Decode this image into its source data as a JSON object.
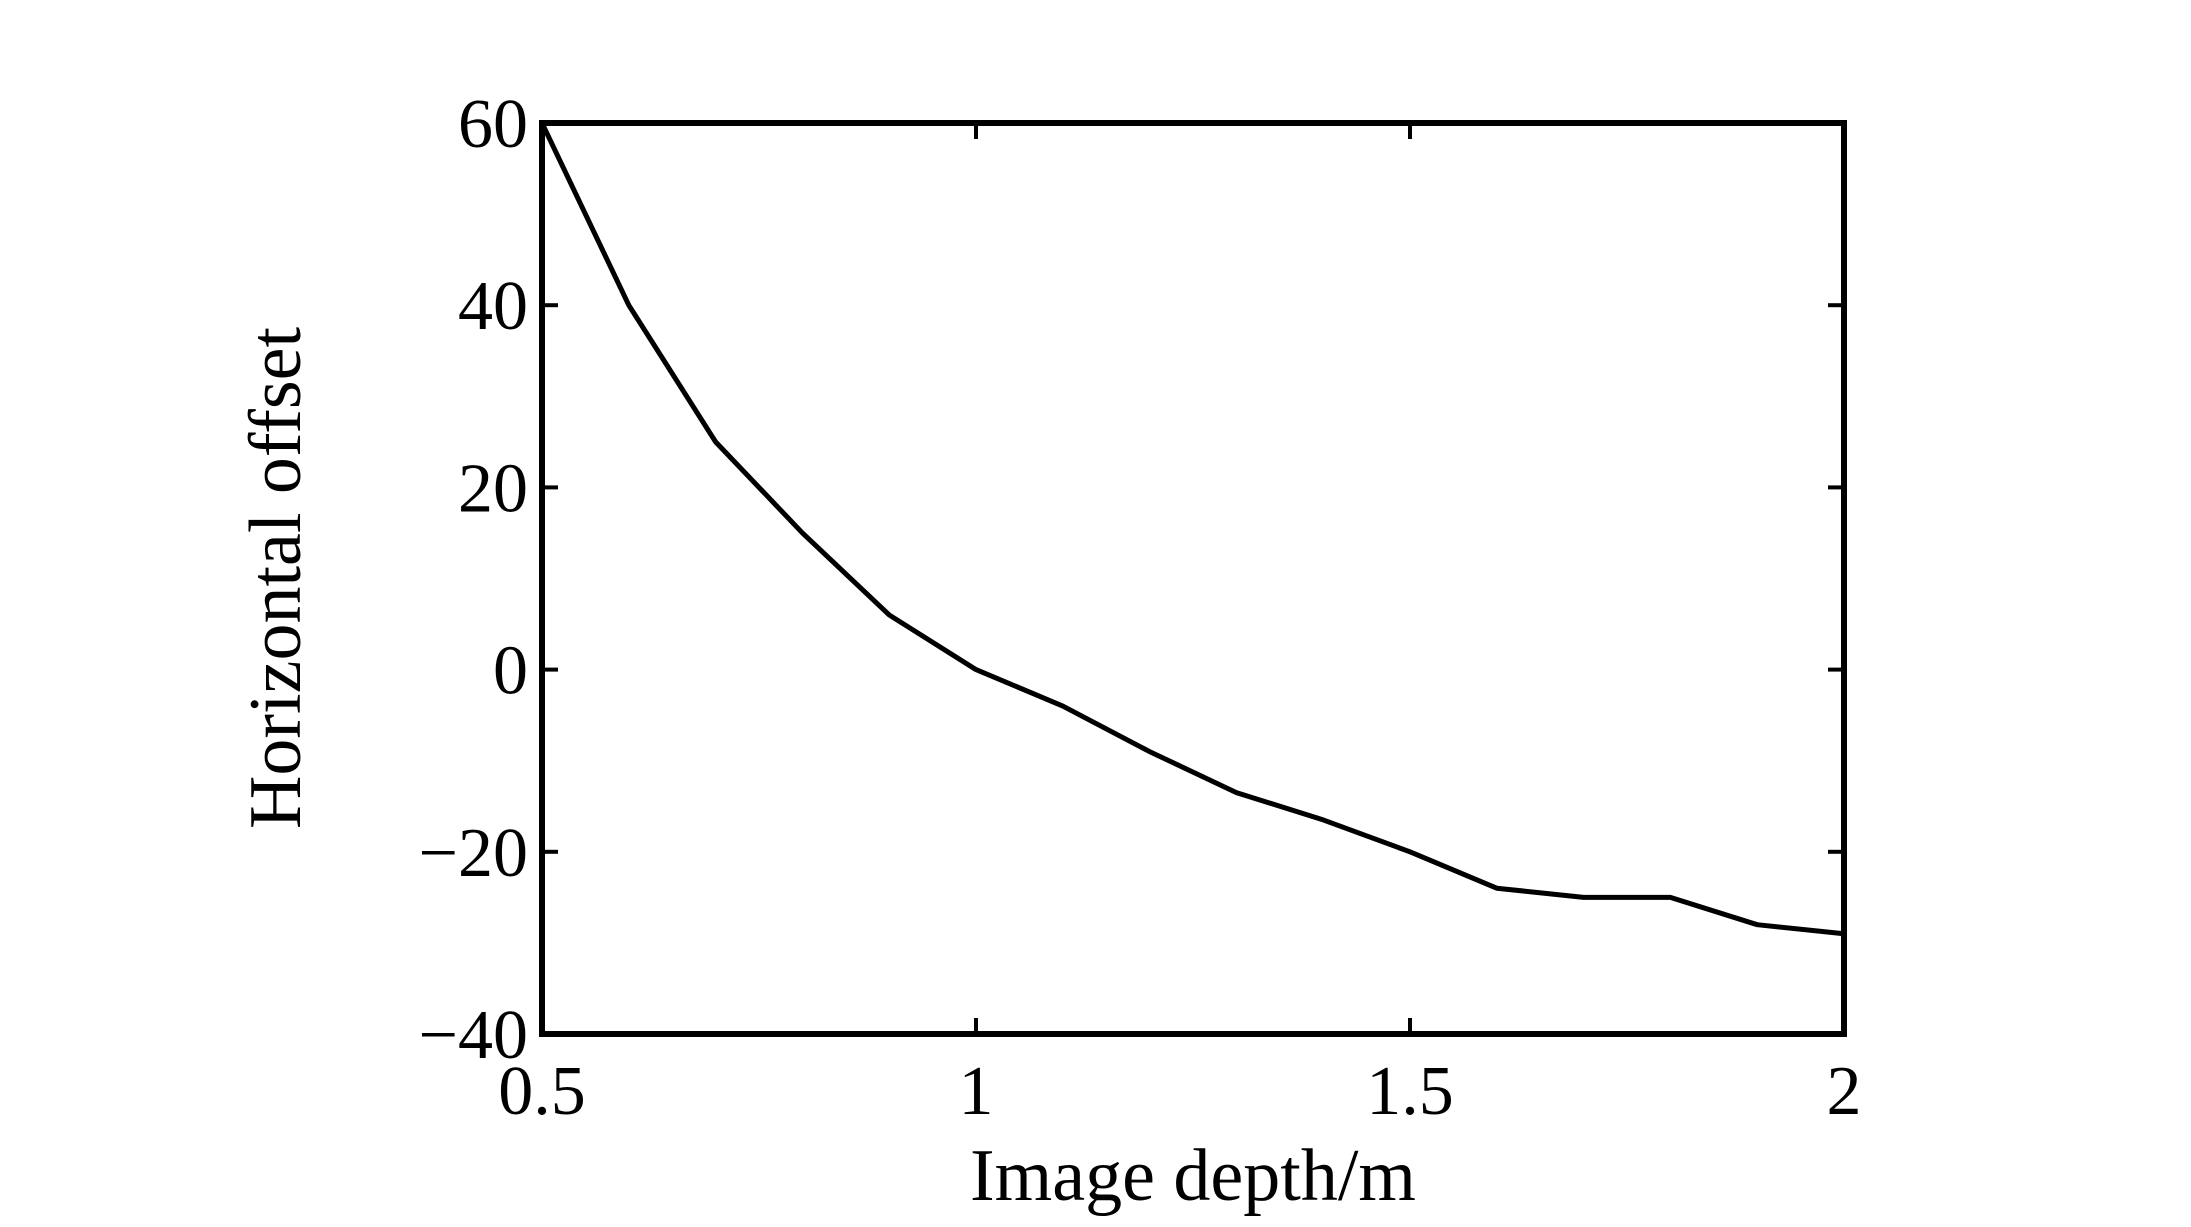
{
  "chart_data": {
    "type": "line",
    "x_label": "Image depth/m",
    "y_label": "Horizontal offset",
    "x": [
      0.5,
      0.6,
      0.7,
      0.8,
      0.9,
      1.0,
      1.1,
      1.2,
      1.3,
      1.4,
      1.5,
      1.6,
      1.7,
      1.8,
      1.9,
      2.0
    ],
    "series": [
      {
        "color": "#000000",
        "values": [
          60,
          40,
          25,
          15,
          6,
          0,
          -4,
          -9,
          -13.5,
          -16.5,
          -20,
          -24,
          -25,
          -25,
          -28,
          -29
        ]
      }
    ],
    "xlim": [
      0.5,
      2
    ],
    "xticks": [
      0.5,
      1,
      1.5,
      2
    ],
    "ylim": [
      -40,
      60
    ],
    "yticks": [
      {
        "value": -40,
        "label": "−40"
      },
      {
        "value": -20,
        "label": "−20"
      },
      0,
      20,
      40,
      60
    ],
    "grid": false
  }
}
